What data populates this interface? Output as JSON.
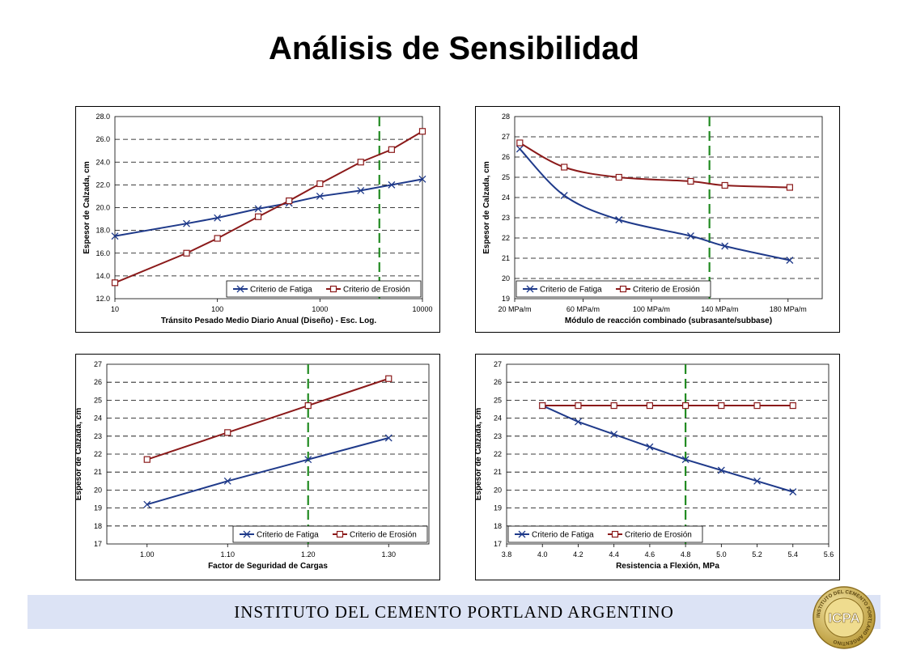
{
  "title": "Análisis de Sensibilidad",
  "footer": {
    "text": "INSTITUTO DEL CEMENTO PORTLAND ARGENTINO",
    "logo_text": "ICPA",
    "logo_ring_text": "INSTITUTO DEL CEMENTO PORTLAND ARGENTINO"
  },
  "colors": {
    "fatiga": "#1f3a8a",
    "erosion": "#8b1a1a",
    "marker": "#228b22",
    "footer": "#dce3f5"
  },
  "chart_data": [
    {
      "type": "line",
      "xscale": "log",
      "xlabel": "Tránsito Pesado Medio Diario Anual (Diseño) - Esc. Log.",
      "ylabel": "Espesor de Calzada, cm",
      "xlim": [
        10,
        10000
      ],
      "ylim": [
        12,
        28
      ],
      "xticks": [
        10,
        100,
        1000,
        10000
      ],
      "xtick_labels": [
        "10",
        "100",
        "1000",
        "10000"
      ],
      "yticks": [
        12,
        14,
        16,
        18,
        20,
        22,
        24,
        26,
        28
      ],
      "ytick_labels": [
        "12.0",
        "14.0",
        "16.0",
        "18.0",
        "20.0",
        "22.0",
        "24.0",
        "26.0",
        "28.0"
      ],
      "marker_line_x": 3800,
      "legend_position": "bottom-right",
      "series": [
        {
          "name": "Criterio de Fatiga",
          "marker": "x",
          "x": [
            10,
            50,
            100,
            250,
            500,
            1000,
            2500,
            5000,
            10000
          ],
          "y": [
            17.5,
            18.6,
            19.1,
            19.9,
            20.4,
            21.0,
            21.5,
            22.0,
            22.5
          ]
        },
        {
          "name": "Criterio de Erosión",
          "marker": "square",
          "x": [
            10,
            50,
            100,
            250,
            500,
            1000,
            2500,
            5000,
            10000
          ],
          "y": [
            13.4,
            16.0,
            17.3,
            19.2,
            20.6,
            22.1,
            24.0,
            25.1,
            26.7
          ]
        }
      ]
    },
    {
      "type": "line",
      "xscale": "linear",
      "xlabel": "Módulo de reacción combinado (subrasante/subbase)",
      "ylabel": "Espesor de Calzada, cm",
      "xlim": [
        20,
        200
      ],
      "ylim": [
        19,
        28
      ],
      "xticks": [
        20,
        60,
        100,
        140,
        180
      ],
      "xtick_labels": [
        "20 MPa/m",
        "60 MPa/m",
        "100 MPa/m",
        "140 MPa/m",
        "180 MPa/m"
      ],
      "yticks": [
        19,
        20,
        21,
        22,
        23,
        24,
        25,
        26,
        27,
        28
      ],
      "ytick_labels": [
        "19",
        "20",
        "21",
        "22",
        "23",
        "24",
        "25",
        "26",
        "27",
        "28"
      ],
      "marker_line_x": 134,
      "legend_position": "bottom",
      "series": [
        {
          "name": "Criterio de Fatiga",
          "marker": "x",
          "x": [
            23,
            49,
            81,
            123,
            143,
            181
          ],
          "y": [
            26.4,
            24.1,
            22.9,
            22.1,
            21.6,
            20.9
          ]
        },
        {
          "name": "Criterio de Erosión",
          "marker": "square",
          "x": [
            23,
            49,
            81,
            123,
            143,
            181
          ],
          "y": [
            26.7,
            25.5,
            25.0,
            24.8,
            24.6,
            24.5
          ]
        }
      ]
    },
    {
      "type": "line",
      "xscale": "linear",
      "xlabel": "Factor de Seguridad de Cargas",
      "ylabel": "Espesor de Calzada, cm",
      "xlim": [
        0.95,
        1.35
      ],
      "ylim": [
        17,
        27
      ],
      "xticks": [
        1.0,
        1.1,
        1.2,
        1.3
      ],
      "xtick_labels": [
        "1.00",
        "1.10",
        "1.20",
        "1.30"
      ],
      "yticks": [
        17,
        18,
        19,
        20,
        21,
        22,
        23,
        24,
        25,
        26,
        27
      ],
      "ytick_labels": [
        "17",
        "18",
        "19",
        "20",
        "21",
        "22",
        "23",
        "24",
        "25",
        "26",
        "27"
      ],
      "marker_line_x": 1.2,
      "legend_position": "bottom-right",
      "series": [
        {
          "name": "Criterio de Fatiga",
          "marker": "x",
          "x": [
            1.0,
            1.1,
            1.2,
            1.3
          ],
          "y": [
            19.2,
            20.5,
            21.7,
            22.9
          ]
        },
        {
          "name": "Criterio de Erosión",
          "marker": "square",
          "x": [
            1.0,
            1.1,
            1.2,
            1.3
          ],
          "y": [
            21.7,
            23.2,
            24.7,
            26.2
          ]
        }
      ]
    },
    {
      "type": "line",
      "xscale": "linear",
      "xlabel": "Resistencia a Flexión, MPa",
      "ylabel": "Espesor de Calzada, cm",
      "xlim": [
        3.8,
        5.6
      ],
      "ylim": [
        17,
        27
      ],
      "xticks": [
        3.8,
        4.0,
        4.2,
        4.4,
        4.6,
        4.8,
        5.0,
        5.2,
        5.4,
        5.6
      ],
      "xtick_labels": [
        "3.8",
        "4.0",
        "4.2",
        "4.4",
        "4.6",
        "4.8",
        "5.0",
        "5.2",
        "5.4",
        "5.6"
      ],
      "yticks": [
        17,
        18,
        19,
        20,
        21,
        22,
        23,
        24,
        25,
        26,
        27
      ],
      "ytick_labels": [
        "17",
        "18",
        "19",
        "20",
        "21",
        "22",
        "23",
        "24",
        "25",
        "26",
        "27"
      ],
      "marker_line_x": 4.8,
      "legend_position": "bottom-left",
      "series": [
        {
          "name": "Criterio de Fatiga",
          "marker": "x",
          "x": [
            4.0,
            4.2,
            4.4,
            4.6,
            4.8,
            5.0,
            5.2,
            5.4
          ],
          "y": [
            24.7,
            23.8,
            23.1,
            22.4,
            21.7,
            21.1,
            20.5,
            19.9
          ]
        },
        {
          "name": "Criterio de Erosión",
          "marker": "square",
          "x": [
            4.0,
            4.2,
            4.4,
            4.6,
            4.8,
            5.0,
            5.2,
            5.4
          ],
          "y": [
            24.7,
            24.7,
            24.7,
            24.7,
            24.7,
            24.7,
            24.7,
            24.7
          ]
        }
      ]
    }
  ]
}
